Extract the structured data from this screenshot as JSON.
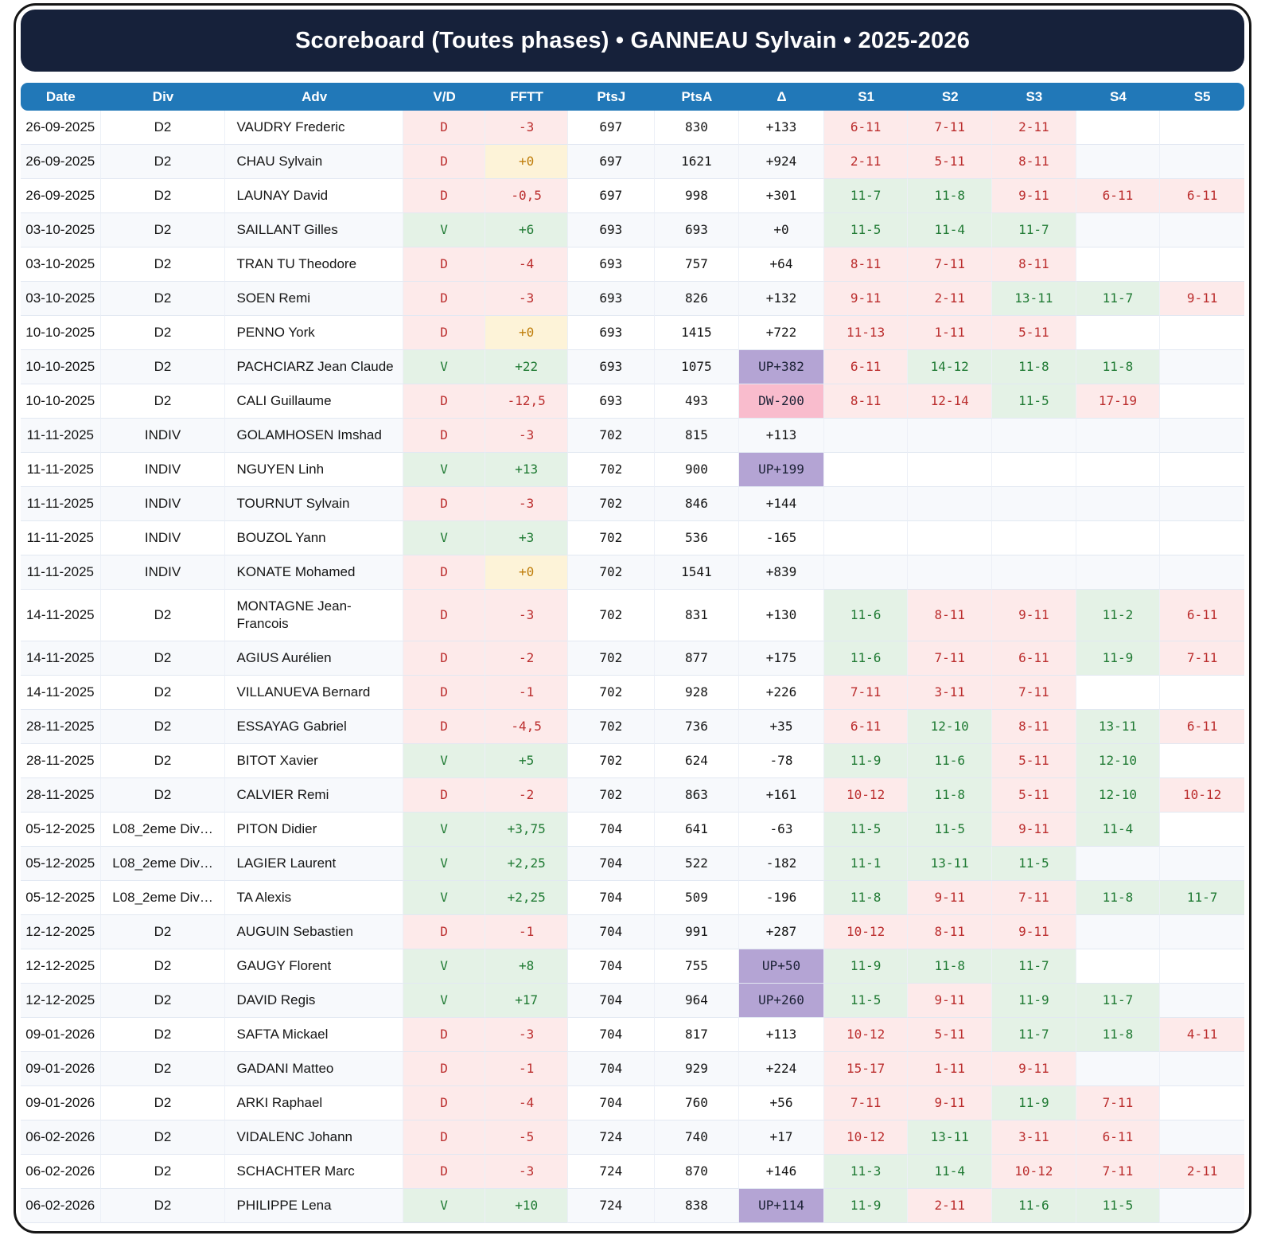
{
  "title": "Scoreboard (Toutes phases) • GANNEAU Sylvain • 2025-2026",
  "columns": [
    "Date",
    "Div",
    "Adv",
    "V/D",
    "FFTT",
    "PtsJ",
    "PtsA",
    "Δ",
    "S1",
    "S2",
    "S3",
    "S4",
    "S5"
  ],
  "colors": {
    "navy": "#16213a",
    "header-blue": "#2178b8",
    "win-bg": "#e4f2e6",
    "win-text": "#1f7a33",
    "loss-bg": "#fdeaea",
    "loss-text": "#bb2d2d",
    "zero-bg": "#fdf3d8",
    "zero-text": "#bf7d0a",
    "up-bg": "#b4a4d4",
    "down-bg": "#f9bccd",
    "stripe": "#f7f9fc"
  },
  "rows": [
    {
      "date": "26-09-2025",
      "div": "D2",
      "adv": "VAUDRY Frederic",
      "vd": "D",
      "fftt": "-3",
      "ptsj": "697",
      "ptsa": "830",
      "delta": "+133",
      "sets": [
        "6-11",
        "7-11",
        "2-11"
      ]
    },
    {
      "date": "26-09-2025",
      "div": "D2",
      "adv": "CHAU Sylvain",
      "vd": "D",
      "fftt": "+0",
      "ptsj": "697",
      "ptsa": "1621",
      "delta": "+924",
      "sets": [
        "2-11",
        "5-11",
        "8-11"
      ]
    },
    {
      "date": "26-09-2025",
      "div": "D2",
      "adv": "LAUNAY David",
      "vd": "D",
      "fftt": "-0,5",
      "ptsj": "697",
      "ptsa": "998",
      "delta": "+301",
      "sets": [
        "11-7",
        "11-8",
        "9-11",
        "6-11",
        "6-11"
      ]
    },
    {
      "date": "03-10-2025",
      "div": "D2",
      "adv": "SAILLANT Gilles",
      "vd": "V",
      "fftt": "+6",
      "ptsj": "693",
      "ptsa": "693",
      "delta": "+0",
      "sets": [
        "11-5",
        "11-4",
        "11-7"
      ]
    },
    {
      "date": "03-10-2025",
      "div": "D2",
      "adv": "TRAN TU Theodore",
      "vd": "D",
      "fftt": "-4",
      "ptsj": "693",
      "ptsa": "757",
      "delta": "+64",
      "sets": [
        "8-11",
        "7-11",
        "8-11"
      ]
    },
    {
      "date": "03-10-2025",
      "div": "D2",
      "adv": "SOEN Remi",
      "vd": "D",
      "fftt": "-3",
      "ptsj": "693",
      "ptsa": "826",
      "delta": "+132",
      "sets": [
        "9-11",
        "2-11",
        "13-11",
        "11-7",
        "9-11"
      ]
    },
    {
      "date": "10-10-2025",
      "div": "D2",
      "adv": "PENNO York",
      "vd": "D",
      "fftt": "+0",
      "ptsj": "693",
      "ptsa": "1415",
      "delta": "+722",
      "sets": [
        "11-13",
        "1-11",
        "5-11"
      ]
    },
    {
      "date": "10-10-2025",
      "div": "D2",
      "adv": "PACHCIARZ Jean Claude",
      "vd": "V",
      "fftt": "+22",
      "ptsj": "693",
      "ptsa": "1075",
      "delta": "UP+382",
      "sets": [
        "6-11",
        "14-12",
        "11-8",
        "11-8"
      ]
    },
    {
      "date": "10-10-2025",
      "div": "D2",
      "adv": "CALI Guillaume",
      "vd": "D",
      "fftt": "-12,5",
      "ptsj": "693",
      "ptsa": "493",
      "delta": "DW-200",
      "sets": [
        "8-11",
        "12-14",
        "11-5",
        "17-19"
      ]
    },
    {
      "date": "11-11-2025",
      "div": "INDIV",
      "adv": "GOLAMHOSEN Imshad",
      "vd": "D",
      "fftt": "-3",
      "ptsj": "702",
      "ptsa": "815",
      "delta": "+113",
      "sets": []
    },
    {
      "date": "11-11-2025",
      "div": "INDIV",
      "adv": "NGUYEN Linh",
      "vd": "V",
      "fftt": "+13",
      "ptsj": "702",
      "ptsa": "900",
      "delta": "UP+199",
      "sets": []
    },
    {
      "date": "11-11-2025",
      "div": "INDIV",
      "adv": "TOURNUT Sylvain",
      "vd": "D",
      "fftt": "-3",
      "ptsj": "702",
      "ptsa": "846",
      "delta": "+144",
      "sets": []
    },
    {
      "date": "11-11-2025",
      "div": "INDIV",
      "adv": "BOUZOL Yann",
      "vd": "V",
      "fftt": "+3",
      "ptsj": "702",
      "ptsa": "536",
      "delta": "-165",
      "sets": []
    },
    {
      "date": "11-11-2025",
      "div": "INDIV",
      "adv": "KONATE Mohamed",
      "vd": "D",
      "fftt": "+0",
      "ptsj": "702",
      "ptsa": "1541",
      "delta": "+839",
      "sets": []
    },
    {
      "date": "14-11-2025",
      "div": "D2",
      "adv": "MONTAGNE Jean-Francois",
      "vd": "D",
      "fftt": "-3",
      "ptsj": "702",
      "ptsa": "831",
      "delta": "+130",
      "sets": [
        "11-6",
        "8-11",
        "9-11",
        "11-2",
        "6-11"
      ]
    },
    {
      "date": "14-11-2025",
      "div": "D2",
      "adv": "AGIUS Aurélien",
      "vd": "D",
      "fftt": "-2",
      "ptsj": "702",
      "ptsa": "877",
      "delta": "+175",
      "sets": [
        "11-6",
        "7-11",
        "6-11",
        "11-9",
        "7-11"
      ]
    },
    {
      "date": "14-11-2025",
      "div": "D2",
      "adv": "VILLANUEVA Bernard",
      "vd": "D",
      "fftt": "-1",
      "ptsj": "702",
      "ptsa": "928",
      "delta": "+226",
      "sets": [
        "7-11",
        "3-11",
        "7-11"
      ]
    },
    {
      "date": "28-11-2025",
      "div": "D2",
      "adv": "ESSAYAG Gabriel",
      "vd": "D",
      "fftt": "-4,5",
      "ptsj": "702",
      "ptsa": "736",
      "delta": "+35",
      "sets": [
        "6-11",
        "12-10",
        "8-11",
        "13-11",
        "6-11"
      ]
    },
    {
      "date": "28-11-2025",
      "div": "D2",
      "adv": "BITOT Xavier",
      "vd": "V",
      "fftt": "+5",
      "ptsj": "702",
      "ptsa": "624",
      "delta": "-78",
      "sets": [
        "11-9",
        "11-6",
        "5-11",
        "12-10"
      ]
    },
    {
      "date": "28-11-2025",
      "div": "D2",
      "adv": "CALVIER Remi",
      "vd": "D",
      "fftt": "-2",
      "ptsj": "702",
      "ptsa": "863",
      "delta": "+161",
      "sets": [
        "10-12",
        "11-8",
        "5-11",
        "12-10",
        "10-12"
      ]
    },
    {
      "date": "05-12-2025",
      "div": "L08_2eme Div…",
      "adv": "PITON Didier",
      "vd": "V",
      "fftt": "+3,75",
      "ptsj": "704",
      "ptsa": "641",
      "delta": "-63",
      "sets": [
        "11-5",
        "11-5",
        "9-11",
        "11-4"
      ]
    },
    {
      "date": "05-12-2025",
      "div": "L08_2eme Div…",
      "adv": "LAGIER Laurent",
      "vd": "V",
      "fftt": "+2,25",
      "ptsj": "704",
      "ptsa": "522",
      "delta": "-182",
      "sets": [
        "11-1",
        "13-11",
        "11-5"
      ]
    },
    {
      "date": "05-12-2025",
      "div": "L08_2eme Div…",
      "adv": "TA Alexis",
      "vd": "V",
      "fftt": "+2,25",
      "ptsj": "704",
      "ptsa": "509",
      "delta": "-196",
      "sets": [
        "11-8",
        "9-11",
        "7-11",
        "11-8",
        "11-7"
      ]
    },
    {
      "date": "12-12-2025",
      "div": "D2",
      "adv": "AUGUIN Sebastien",
      "vd": "D",
      "fftt": "-1",
      "ptsj": "704",
      "ptsa": "991",
      "delta": "+287",
      "sets": [
        "10-12",
        "8-11",
        "9-11"
      ]
    },
    {
      "date": "12-12-2025",
      "div": "D2",
      "adv": "GAUGY Florent",
      "vd": "V",
      "fftt": "+8",
      "ptsj": "704",
      "ptsa": "755",
      "delta": "UP+50",
      "sets": [
        "11-9",
        "11-8",
        "11-7"
      ]
    },
    {
      "date": "12-12-2025",
      "div": "D2",
      "adv": "DAVID Regis",
      "vd": "V",
      "fftt": "+17",
      "ptsj": "704",
      "ptsa": "964",
      "delta": "UP+260",
      "sets": [
        "11-5",
        "9-11",
        "11-9",
        "11-7"
      ]
    },
    {
      "date": "09-01-2026",
      "div": "D2",
      "adv": "SAFTA Mickael",
      "vd": "D",
      "fftt": "-3",
      "ptsj": "704",
      "ptsa": "817",
      "delta": "+113",
      "sets": [
        "10-12",
        "5-11",
        "11-7",
        "11-8",
        "4-11"
      ]
    },
    {
      "date": "09-01-2026",
      "div": "D2",
      "adv": "GADANI Matteo",
      "vd": "D",
      "fftt": "-1",
      "ptsj": "704",
      "ptsa": "929",
      "delta": "+224",
      "sets": [
        "15-17",
        "1-11",
        "9-11"
      ]
    },
    {
      "date": "09-01-2026",
      "div": "D2",
      "adv": "ARKI Raphael",
      "vd": "D",
      "fftt": "-4",
      "ptsj": "704",
      "ptsa": "760",
      "delta": "+56",
      "sets": [
        "7-11",
        "9-11",
        "11-9",
        "7-11"
      ]
    },
    {
      "date": "06-02-2026",
      "div": "D2",
      "adv": "VIDALENC Johann",
      "vd": "D",
      "fftt": "-5",
      "ptsj": "724",
      "ptsa": "740",
      "delta": "+17",
      "sets": [
        "10-12",
        "13-11",
        "3-11",
        "6-11"
      ]
    },
    {
      "date": "06-02-2026",
      "div": "D2",
      "adv": "SCHACHTER Marc",
      "vd": "D",
      "fftt": "-3",
      "ptsj": "724",
      "ptsa": "870",
      "delta": "+146",
      "sets": [
        "11-3",
        "11-4",
        "10-12",
        "7-11",
        "2-11"
      ]
    },
    {
      "date": "06-02-2026",
      "div": "D2",
      "adv": "PHILIPPE Lena",
      "vd": "V",
      "fftt": "+10",
      "ptsj": "724",
      "ptsa": "838",
      "delta": "UP+114",
      "sets": [
        "11-9",
        "2-11",
        "11-6",
        "11-5"
      ]
    }
  ]
}
